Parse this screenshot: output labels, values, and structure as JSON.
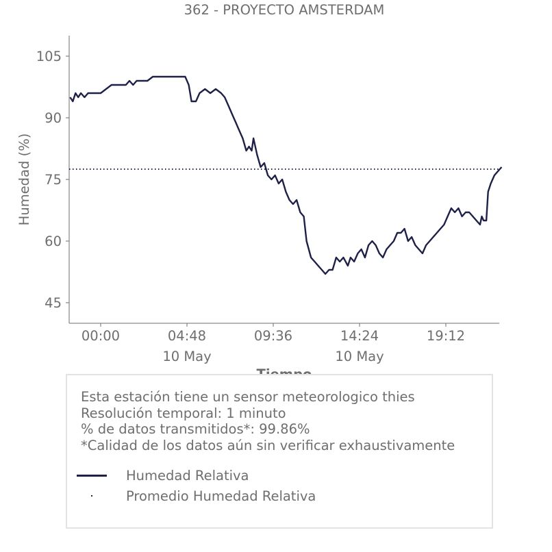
{
  "chart_data": {
    "type": "line",
    "title": "362 - PROYECTO AMSTERDAM",
    "xlabel": "Tiempo",
    "ylabel": "Humedad (%)",
    "y_ticks": [
      45,
      60,
      75,
      90,
      105
    ],
    "ylim": [
      40,
      110
    ],
    "x_ticks": [
      {
        "label": "00:00",
        "sub": ""
      },
      {
        "label": "04:48",
        "sub": "10 May"
      },
      {
        "label": "09:36",
        "sub": ""
      },
      {
        "label": "14:24",
        "sub": "10 May"
      },
      {
        "label": "19:12",
        "sub": ""
      }
    ],
    "x_tick_hours": [
      0,
      4.8,
      9.6,
      14.4,
      19.2
    ],
    "xlim_hours": [
      -1.75,
      22.3
    ],
    "series": [
      {
        "name": "Humedad Relativa",
        "color": "#1f2048",
        "points": [
          [
            -1.7,
            95
          ],
          [
            -1.55,
            94
          ],
          [
            -1.4,
            96
          ],
          [
            -1.25,
            95
          ],
          [
            -1.1,
            96
          ],
          [
            -0.9,
            95
          ],
          [
            -0.7,
            96
          ],
          [
            -0.5,
            96
          ],
          [
            -0.3,
            96
          ],
          [
            0.0,
            96
          ],
          [
            0.3,
            97
          ],
          [
            0.6,
            98
          ],
          [
            1.0,
            98
          ],
          [
            1.4,
            98
          ],
          [
            1.6,
            99
          ],
          [
            1.8,
            98
          ],
          [
            2.0,
            99
          ],
          [
            2.3,
            99
          ],
          [
            2.6,
            99
          ],
          [
            2.9,
            100
          ],
          [
            3.3,
            100
          ],
          [
            3.8,
            100
          ],
          [
            4.3,
            100
          ],
          [
            4.7,
            100
          ],
          [
            4.9,
            98
          ],
          [
            5.05,
            94
          ],
          [
            5.3,
            94
          ],
          [
            5.5,
            96
          ],
          [
            5.8,
            97
          ],
          [
            6.1,
            96
          ],
          [
            6.4,
            97
          ],
          [
            6.7,
            96
          ],
          [
            6.9,
            95
          ],
          [
            7.1,
            93
          ],
          [
            7.3,
            91
          ],
          [
            7.5,
            89
          ],
          [
            7.7,
            87
          ],
          [
            7.9,
            85
          ],
          [
            8.1,
            82
          ],
          [
            8.25,
            83
          ],
          [
            8.4,
            82
          ],
          [
            8.5,
            85
          ],
          [
            8.7,
            81
          ],
          [
            8.9,
            78
          ],
          [
            9.1,
            79
          ],
          [
            9.3,
            76
          ],
          [
            9.5,
            75
          ],
          [
            9.7,
            76
          ],
          [
            9.9,
            74
          ],
          [
            10.1,
            75
          ],
          [
            10.3,
            72
          ],
          [
            10.5,
            70
          ],
          [
            10.7,
            69
          ],
          [
            10.9,
            70
          ],
          [
            11.1,
            67
          ],
          [
            11.3,
            66
          ],
          [
            11.45,
            60
          ],
          [
            11.7,
            56
          ],
          [
            11.9,
            55
          ],
          [
            12.1,
            54
          ],
          [
            12.3,
            53
          ],
          [
            12.5,
            52
          ],
          [
            12.7,
            53
          ],
          [
            12.9,
            53
          ],
          [
            13.1,
            56
          ],
          [
            13.3,
            55
          ],
          [
            13.5,
            56
          ],
          [
            13.75,
            54
          ],
          [
            13.9,
            56
          ],
          [
            14.1,
            55
          ],
          [
            14.3,
            57
          ],
          [
            14.5,
            58
          ],
          [
            14.7,
            56
          ],
          [
            14.9,
            59
          ],
          [
            15.1,
            60
          ],
          [
            15.3,
            59
          ],
          [
            15.5,
            57
          ],
          [
            15.7,
            56
          ],
          [
            15.9,
            58
          ],
          [
            16.1,
            59
          ],
          [
            16.3,
            60
          ],
          [
            16.5,
            62
          ],
          [
            16.7,
            62
          ],
          [
            16.9,
            63
          ],
          [
            17.1,
            60
          ],
          [
            17.3,
            61
          ],
          [
            17.5,
            59
          ],
          [
            17.7,
            58
          ],
          [
            17.9,
            57
          ],
          [
            18.1,
            59
          ],
          [
            18.3,
            60
          ],
          [
            18.5,
            61
          ],
          [
            18.7,
            62
          ],
          [
            18.9,
            63
          ],
          [
            19.1,
            64
          ],
          [
            19.3,
            66
          ],
          [
            19.5,
            68
          ],
          [
            19.7,
            67
          ],
          [
            19.9,
            68
          ],
          [
            20.1,
            66
          ],
          [
            20.3,
            67
          ],
          [
            20.5,
            67
          ],
          [
            20.7,
            66
          ],
          [
            20.9,
            65
          ],
          [
            21.1,
            64
          ],
          [
            21.2,
            66
          ],
          [
            21.3,
            65
          ],
          [
            21.45,
            65
          ],
          [
            21.55,
            72
          ],
          [
            21.7,
            74
          ],
          [
            21.9,
            76
          ],
          [
            22.1,
            77
          ],
          [
            22.3,
            78
          ]
        ]
      },
      {
        "name": "Promedio Humedad Relativa",
        "color": "#1f2048",
        "style": "dotted",
        "value": 77.5
      }
    ]
  },
  "info": {
    "line1": "Esta estación tiene un sensor meteorologico thies",
    "line2": "Resolución temporal: 1 minuto",
    "line3": "% de datos transmitidos*: 99.86%",
    "line4": "*Calidad de los datos aún sin verificar exhaustivamente"
  },
  "legend": {
    "item1": "Humedad Relativa",
    "item2": "Promedio Humedad Relativa"
  }
}
